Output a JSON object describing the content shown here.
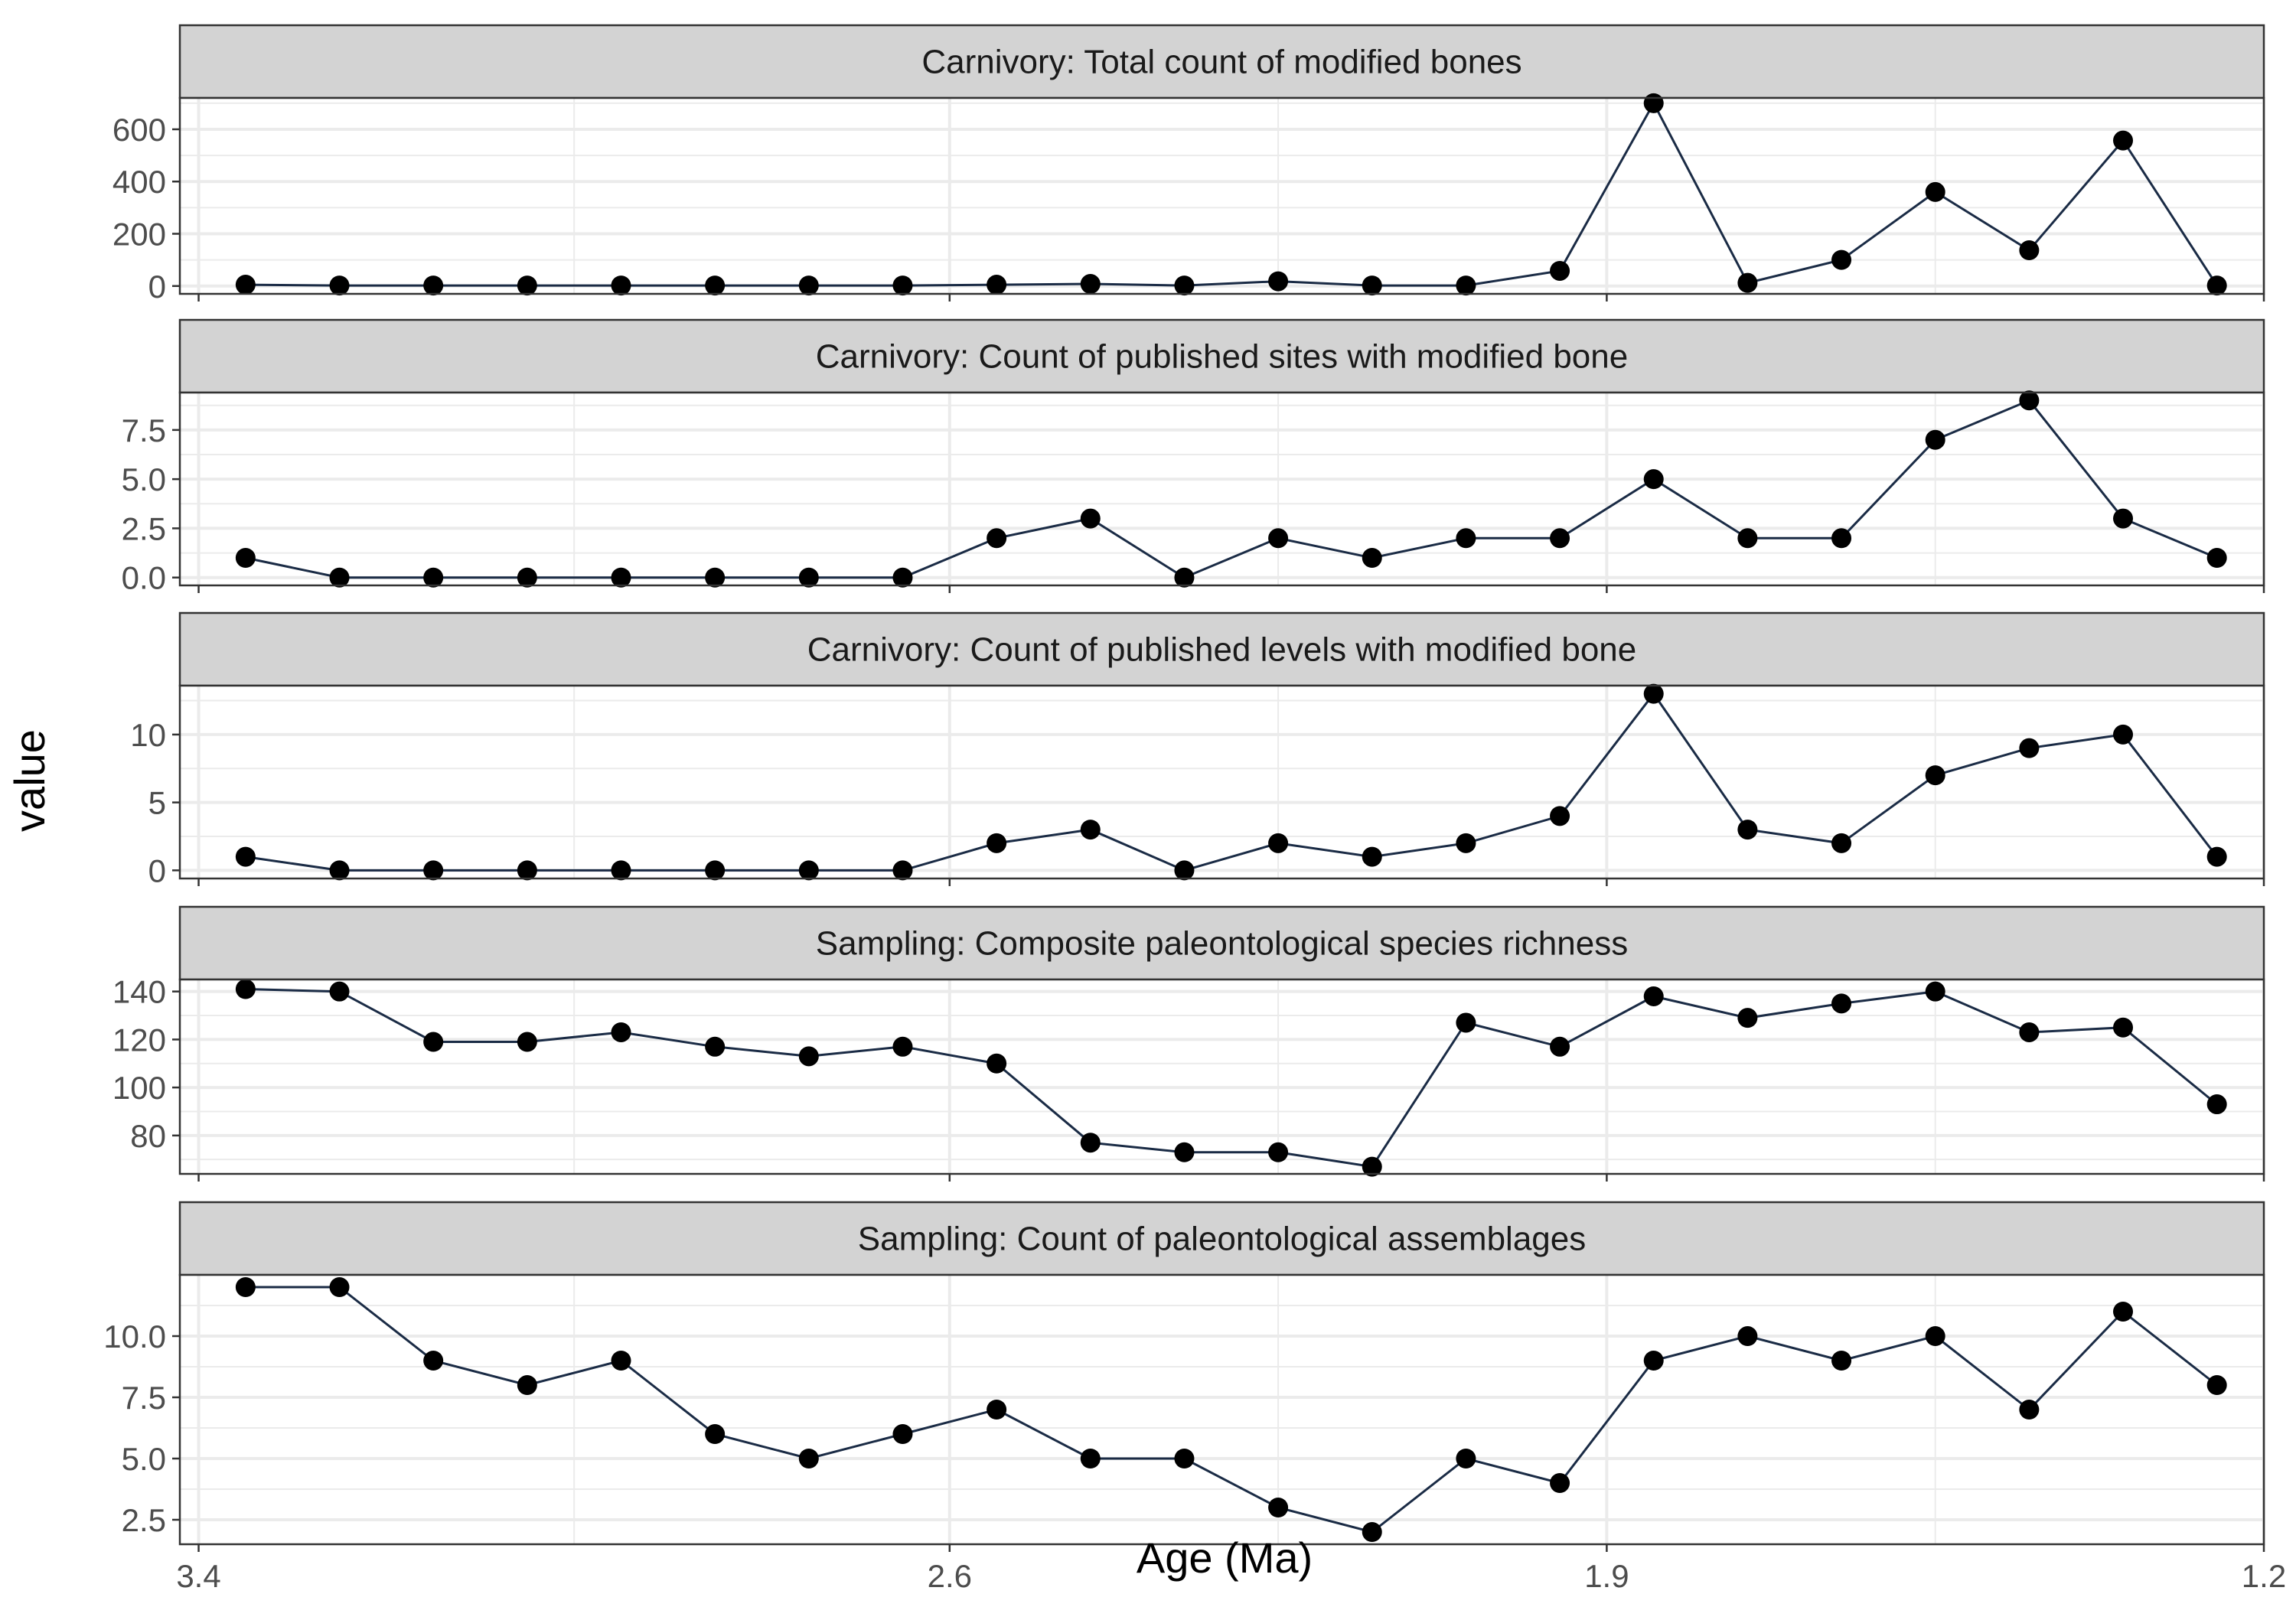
{
  "chart_data": {
    "type": "line",
    "xlabel": "Age (Ma)",
    "ylabel": "value",
    "x_reversed": true,
    "xlim": [
      3.42,
      1.2
    ],
    "xticks": [
      "3.4",
      "2.6",
      "1.9",
      "1.2"
    ],
    "x": [
      3.35,
      3.25,
      3.15,
      3.05,
      2.95,
      2.85,
      2.75,
      2.65,
      2.55,
      2.45,
      2.35,
      2.25,
      2.15,
      2.05,
      1.95,
      1.85,
      1.75,
      1.65,
      1.55,
      1.45,
      1.35,
      1.25
    ],
    "colors": {
      "line": "#1a2b45",
      "point": "#000000",
      "strip_bg": "#d3d3d3",
      "grid": "#ebebeb"
    },
    "grid": true,
    "panels": [
      {
        "title": "Carnivory: Total count of modified bones",
        "ylim": [
          -30,
          720
        ],
        "yticks": [
          0,
          200,
          400,
          600
        ],
        "yticklabels": [
          "0",
          "200",
          "400",
          "600"
        ],
        "values": [
          5,
          2,
          2,
          2,
          2,
          2,
          2,
          2,
          5,
          8,
          2,
          18,
          2,
          2,
          58,
          700,
          12,
          100,
          360,
          137,
          557,
          2
        ]
      },
      {
        "title": "Carnivory: Count of published sites with modified bone",
        "ylim": [
          -0.4,
          9.4
        ],
        "yticks": [
          0,
          2.5,
          5,
          7.5
        ],
        "yticklabels": [
          "0.0",
          "2.5",
          "5.0",
          "7.5"
        ],
        "values": [
          1,
          0,
          0,
          0,
          0,
          0,
          0,
          0,
          2,
          3,
          0,
          2,
          1,
          2,
          2,
          5,
          2,
          2,
          7,
          9,
          3,
          1
        ]
      },
      {
        "title": "Carnivory: Count of published levels with modified bone",
        "ylim": [
          -0.6,
          13.6
        ],
        "yticks": [
          0,
          5,
          10
        ],
        "yticklabels": [
          "0",
          "5",
          "10"
        ],
        "values": [
          1,
          0,
          0,
          0,
          0,
          0,
          0,
          0,
          2,
          3,
          0,
          2,
          1,
          2,
          4,
          13,
          3,
          2,
          7,
          9,
          10,
          1
        ]
      },
      {
        "title": "Sampling: Composite paleontological species richness",
        "ylim": [
          64,
          145
        ],
        "yticks": [
          80,
          100,
          120,
          140
        ],
        "yticklabels": [
          "80",
          "100",
          "120",
          "140"
        ],
        "values": [
          141,
          140,
          119,
          119,
          123,
          117,
          113,
          117,
          110,
          77,
          73,
          73,
          67,
          127,
          117,
          138,
          129,
          135,
          140,
          123,
          125,
          93
        ]
      },
      {
        "title": "Sampling: Count of paleontological assemblages",
        "ylim": [
          1.5,
          12.5
        ],
        "yticks": [
          2.5,
          5,
          7.5,
          10
        ],
        "yticklabels": [
          "2.5",
          "5.0",
          "7.5",
          "10.0"
        ],
        "values": [
          12,
          12,
          9,
          8,
          9,
          6,
          5,
          6,
          7,
          5,
          5,
          3,
          2,
          5,
          4,
          9,
          10,
          9,
          10,
          7,
          11,
          8
        ]
      }
    ]
  }
}
